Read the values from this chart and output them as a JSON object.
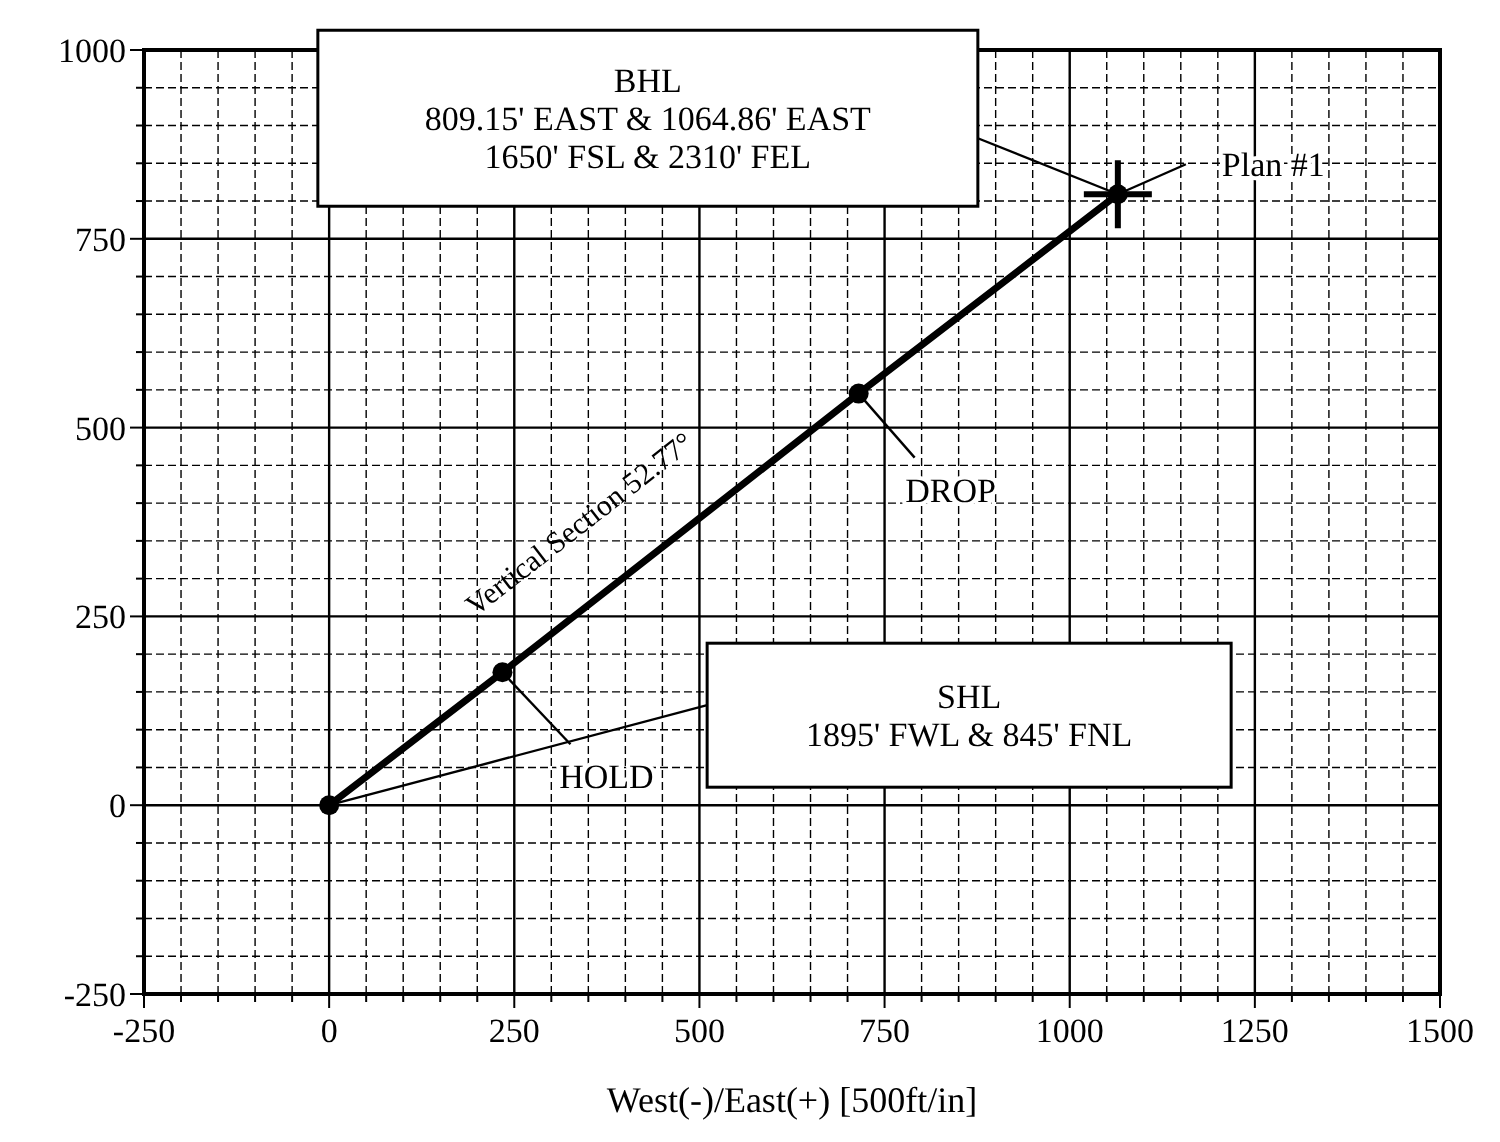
{
  "chart_data": {
    "type": "line",
    "xlabel": "West(-)/East(+) [500ft/in]",
    "x": [
      0,
      234,
      715,
      1065
    ],
    "series": [
      {
        "color": "#000000",
        "values": [
          0,
          176,
          545,
          809
        ],
        "marker": "circle"
      }
    ],
    "xlim": [
      -250,
      1500
    ],
    "ylim": [
      -250,
      1000
    ],
    "xticks": [
      -250,
      {
        "value": -200,
        "label": null
      },
      {
        "value": -150,
        "label": null
      },
      {
        "value": -100,
        "label": null
      },
      {
        "value": -50,
        "label": null
      },
      0,
      {
        "value": 50,
        "label": null
      },
      {
        "value": 100,
        "label": null
      },
      {
        "value": 150,
        "label": null
      },
      {
        "value": 200,
        "label": null
      },
      250,
      {
        "value": 300,
        "label": null
      },
      {
        "value": 350,
        "label": null
      },
      {
        "value": 400,
        "label": null
      },
      {
        "value": 450,
        "label": null
      },
      500,
      {
        "value": 550,
        "label": null
      },
      {
        "value": 600,
        "label": null
      },
      {
        "value": 650,
        "label": null
      },
      {
        "value": 700,
        "label": null
      },
      750,
      {
        "value": 800,
        "label": null
      },
      {
        "value": 850,
        "label": null
      },
      {
        "value": 900,
        "label": null
      },
      {
        "value": 950,
        "label": null
      },
      1000,
      {
        "value": 1050,
        "label": null
      },
      {
        "value": 1100,
        "label": null
      },
      {
        "value": 1150,
        "label": null
      },
      {
        "value": 1200,
        "label": null
      },
      1250,
      {
        "value": 1300,
        "label": null
      },
      {
        "value": 1350,
        "label": null
      },
      {
        "value": 1400,
        "label": null
      },
      {
        "value": 1450,
        "label": null
      },
      1500
    ],
    "yticks": [
      -250,
      {
        "value": -200,
        "label": null
      },
      {
        "value": -150,
        "label": null
      },
      {
        "value": -100,
        "label": null
      },
      {
        "value": -50,
        "label": null
      },
      0,
      {
        "value": 50,
        "label": null
      },
      {
        "value": 100,
        "label": null
      },
      {
        "value": 150,
        "label": null
      },
      {
        "value": 200,
        "label": null
      },
      250,
      {
        "value": 300,
        "label": null
      },
      {
        "value": 350,
        "label": null
      },
      {
        "value": 400,
        "label": null
      },
      {
        "value": 450,
        "label": null
      },
      500,
      {
        "value": 550,
        "label": null
      },
      {
        "value": 600,
        "label": null
      },
      {
        "value": 650,
        "label": null
      },
      {
        "value": 700,
        "label": null
      },
      750,
      {
        "value": 800,
        "label": null
      },
      {
        "value": 850,
        "label": null
      },
      {
        "value": 900,
        "label": null
      },
      {
        "value": 950,
        "label": null
      },
      1000
    ],
    "grid": true,
    "annotations": [
      "BHL\n809.15' EAST & 1064.86' EAST\n1650' FSL & 2310' FEL",
      {
        "text": "Plan #1",
        "x": 1065,
        "y": 809
      },
      {
        "text": "DROP",
        "x": 715,
        "y": 545
      },
      {
        "text": "Vertical Section 52.77°",
        "x": 400,
        "y": 304
      },
      {
        "text": "HOLD",
        "x": 234,
        "y": 176
      },
      "SHL\n1895' FWL & 845' FNL"
    ]
  }
}
